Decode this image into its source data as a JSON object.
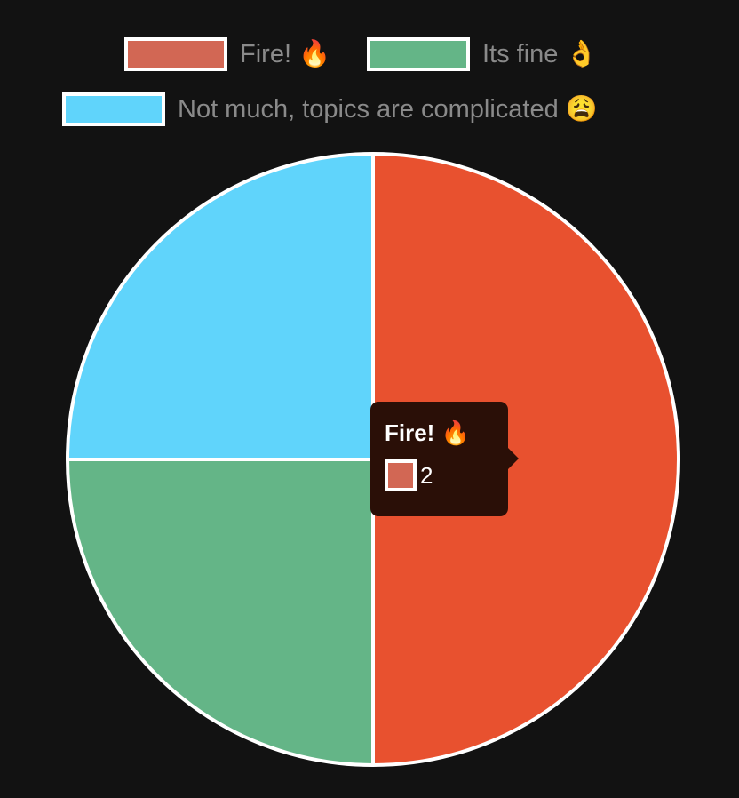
{
  "chart_data": {
    "type": "pie",
    "categories": [
      "Fire! 🔥",
      "Its fine 👌",
      "Not much, topics are complicated 😩"
    ],
    "values": [
      2,
      1,
      1
    ],
    "colors": [
      "#e8512f",
      "#64b587",
      "#60d4fb"
    ],
    "legend_colors": [
      "#d26754",
      "#64b587",
      "#60d4fb"
    ],
    "slice_border_color": "#ffffff",
    "legend": {
      "position": "top",
      "items": [
        {
          "label": "Fire! 🔥",
          "color": "#d26754"
        },
        {
          "label": "Its fine 👌",
          "color": "#64b587"
        },
        {
          "label": "Not much, topics are complicated 😩",
          "color": "#60d4fb"
        }
      ]
    },
    "tooltip": {
      "title": "Fire! 🔥",
      "value": "2",
      "swatch_color": "#d26754"
    }
  }
}
